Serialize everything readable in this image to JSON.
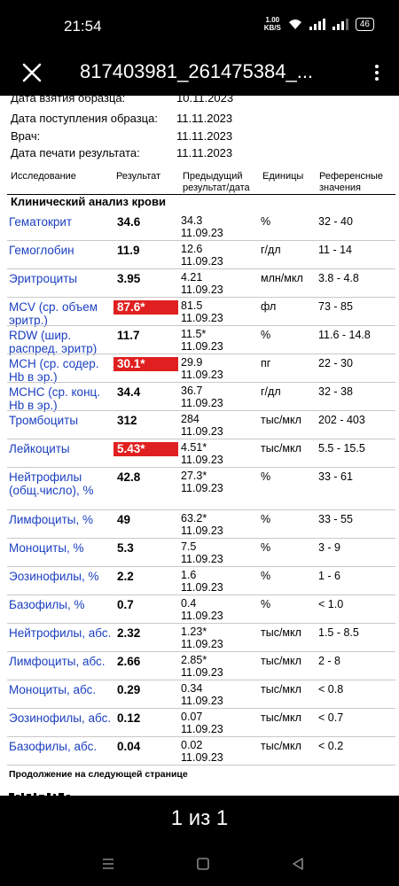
{
  "status": {
    "time": "21:54",
    "speed_value": "1.00",
    "speed_unit": "KB/S",
    "battery": "46"
  },
  "toolbar": {
    "title": "817403981_261475384_..."
  },
  "meta": [
    {
      "label": "Дата взятия образца:",
      "value": "10.11.2023"
    },
    {
      "label": "Дата поступления образца:",
      "value": "11.11.2023"
    },
    {
      "label": "Врач:",
      "value": "11.11.2023"
    },
    {
      "label": "Дата печати результата:",
      "value": "11.11.2023"
    }
  ],
  "table": {
    "headers": {
      "test": "Исследование",
      "result": "Результат",
      "prev": "Предыдущий результат/дата",
      "units": "Единицы",
      "ref": "Референсные значения"
    },
    "section": "Клинический анализ крови",
    "rows": [
      {
        "name": "Гематокрит",
        "result": "34.6",
        "prev_value": "34.3",
        "prev_date": "11.09.23",
        "unit": "%",
        "ref": "32 - 40"
      },
      {
        "name": "Гемоглобин",
        "result": "11.9",
        "prev_value": "12.6",
        "prev_date": "11.09.23",
        "unit": "г/дл",
        "ref": "11 - 14"
      },
      {
        "name": "Эритроциты",
        "result": "3.95",
        "prev_value": "4.21",
        "prev_date": "11.09.23",
        "unit": "млн/мкл",
        "ref": "3.8 - 4.8"
      },
      {
        "name": "MCV (ср. объем эритр.)",
        "result": "87.6*",
        "prev_value": "81.5",
        "prev_date": "11.09.23",
        "unit": "фл",
        "ref": "73 - 85"
      },
      {
        "name": "RDW (шир. распред. эритр)",
        "result": "11.7",
        "prev_value": "11.5*",
        "prev_date": "11.09.23",
        "unit": "%",
        "ref": "11.6 - 14.8"
      },
      {
        "name": "MCH (ср. содер. Hb в эр.)",
        "result": "30.1*",
        "prev_value": "29.9",
        "prev_date": "11.09.23",
        "unit": "пг",
        "ref": "22 - 30"
      },
      {
        "name": "MCHC (ср. конц. Hb в эр.)",
        "result": "34.4",
        "prev_value": "36.7",
        "prev_date": "11.09.23",
        "unit": "г/дл",
        "ref": "32 - 38"
      },
      {
        "name": "Тромбоциты",
        "result": "312",
        "prev_value": "284",
        "prev_date": "11.09.23",
        "unit": "тыс/мкл",
        "ref": "202 - 403"
      },
      {
        "name": "Лейкоциты",
        "result": "5.43*",
        "prev_value": "4.51*",
        "prev_date": "11.09.23",
        "unit": "тыс/мкл",
        "ref": "5.5 - 15.5"
      },
      {
        "name": "Нейтрофилы (общ.число), %",
        "result": "42.8",
        "prev_value": "27.3*",
        "prev_date": "11.09.23",
        "unit": "%",
        "ref": "33 - 61"
      },
      {
        "name": "Лимфоциты, %",
        "result": "49",
        "prev_value": "63.2*",
        "prev_date": "11.09.23",
        "unit": "%",
        "ref": "33 - 55"
      },
      {
        "name": "Моноциты, %",
        "result": "5.3",
        "prev_value": "7.5",
        "prev_date": "11.09.23",
        "unit": "%",
        "ref": "3 - 9"
      },
      {
        "name": "Эозинофилы, %",
        "result": "2.2",
        "prev_value": "1.6",
        "prev_date": "11.09.23",
        "unit": "%",
        "ref": "1 - 6"
      },
      {
        "name": "Базофилы, %",
        "result": "0.7",
        "prev_value": "0.4",
        "prev_date": "11.09.23",
        "unit": "%",
        "ref": "< 1.0"
      },
      {
        "name": "Нейтрофилы, абс.",
        "result": "2.32",
        "prev_value": "1.23*",
        "prev_date": "11.09.23",
        "unit": "тыс/мкл",
        "ref": "1.5 - 8.5"
      },
      {
        "name": "Лимфоциты, абс.",
        "result": "2.66",
        "prev_value": "2.85*",
        "prev_date": "11.09.23",
        "unit": "тыс/мкл",
        "ref": "2 - 8"
      },
      {
        "name": "Моноциты, абс.",
        "result": "0.29",
        "prev_value": "0.34",
        "prev_date": "11.09.23",
        "unit": "тыс/мкл",
        "ref": "< 0.8"
      },
      {
        "name": "Эозинофилы, абс.",
        "result": "0.12",
        "prev_value": "0.07",
        "prev_date": "11.09.23",
        "unit": "тыс/мкл",
        "ref": "< 0.7"
      },
      {
        "name": "Базофилы, абс.",
        "result": "0.04",
        "prev_value": "0.02",
        "prev_date": "11.09.23",
        "unit": "тыс/мкл",
        "ref": "< 0.2"
      }
    ],
    "flag_color": "#e02020"
  },
  "continuation": "Продолжение на следующей странице",
  "pager": {
    "text": "1 из 1"
  },
  "nav": {
    "icons": [
      "menu-icon",
      "home-square-icon",
      "back-triangle-icon"
    ]
  }
}
